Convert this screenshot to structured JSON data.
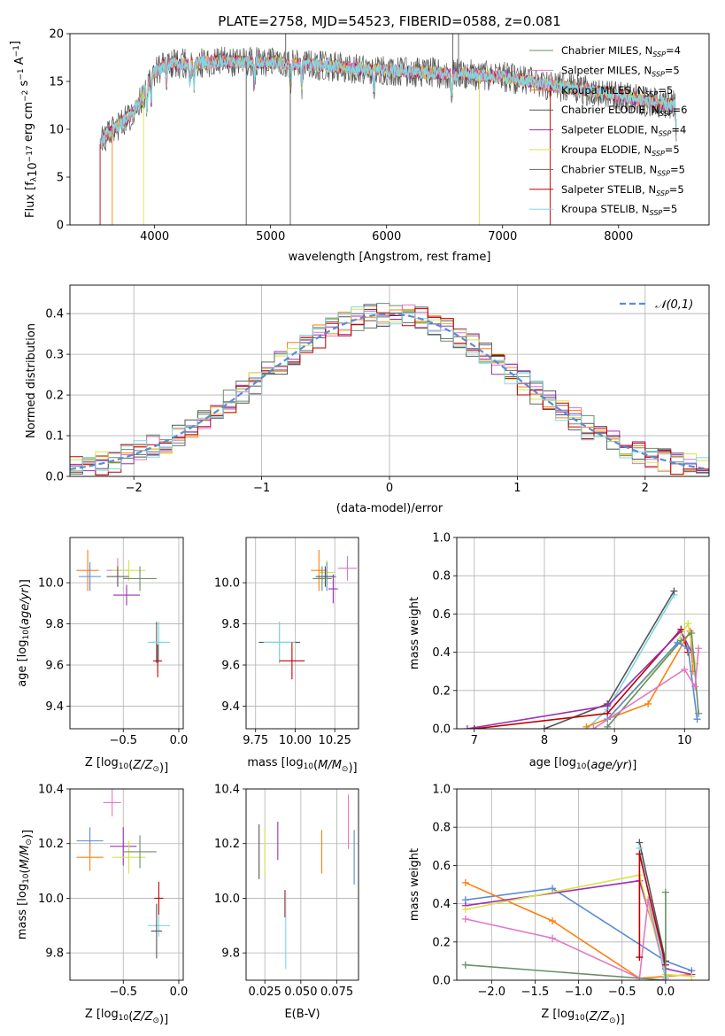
{
  "figure": {
    "title": "PLATE=2758, MJD=54523, FIBERID=0588, z=0.081"
  },
  "chart_data": [
    {
      "id": "spectrum",
      "type": "line",
      "title": "PLATE=2758, MJD=54523, FIBERID=0588, z=0.081",
      "xlabel": "wavelength [Angstrom, rest frame]",
      "ylabel": "Flux [fλ10⁻¹⁷ erg cm⁻² s⁻¹ A⁻¹]",
      "xlim": [
        3270,
        8780
      ],
      "ylim": [
        0,
        20
      ],
      "xticks": [
        4000,
        5000,
        6000,
        7000,
        8000
      ],
      "yticks": [
        0,
        5,
        10,
        15,
        20
      ],
      "grid": false,
      "legend_position": "top-right",
      "continuum": {
        "x": [
          3530,
          3600,
          3700,
          3800,
          3900,
          4000,
          4100,
          4300,
          4600,
          5000,
          5400,
          5800,
          6200,
          6600,
          7000,
          7300,
          7600,
          7900,
          8200,
          8500
        ],
        "y": [
          8.5,
          9.5,
          10.5,
          11.5,
          13.5,
          16.0,
          16.8,
          16.9,
          17.1,
          17.0,
          16.7,
          16.3,
          16.0,
          15.8,
          15.5,
          14.8,
          14.3,
          13.8,
          13.0,
          12.5
        ]
      },
      "series": [
        {
          "name": "Chabrier MILES, N_SSP=4",
          "color": "#6a8f6a"
        },
        {
          "name": "Salpeter MILES, N_SSP=5",
          "color": "#e377c2"
        },
        {
          "name": "Kroupa MILES, N_SSP=5",
          "color": "#ff7f0e"
        },
        {
          "name": "Chabrier ELODIE, N_SSP=6",
          "color": "#555555"
        },
        {
          "name": "Salpeter ELODIE, N_SSP=4",
          "color": "#9b30b6"
        },
        {
          "name": "Kroupa ELODIE, N_SSP=5",
          "color": "#d8e34a"
        },
        {
          "name": "Chabrier STELIB, N_SSP=5",
          "color": "#666666"
        },
        {
          "name": "Salpeter STELIB, N_SSP=5",
          "color": "#c00000"
        },
        {
          "name": "Kroupa STELIB, N_SSP=5",
          "color": "#7fd8e0"
        }
      ],
      "legend": [
        {
          "pre": "Chabrier MILES, N",
          "sub": "SSP",
          "post": "=4",
          "color": "#6a8f6a"
        },
        {
          "pre": "Salpeter MILES, N",
          "sub": "SSP",
          "post": "=5",
          "color": "#e377c2"
        },
        {
          "pre": "Kroupa MILES, N",
          "sub": "SSP",
          "post": "=5",
          "color": "#ff7f0e"
        },
        {
          "pre": "Chabrier ELODIE, N",
          "sub": "SSP",
          "post": "=6",
          "color": "#555555"
        },
        {
          "pre": "Salpeter ELODIE, N",
          "sub": "SSP",
          "post": "=4",
          "color": "#9b30b6"
        },
        {
          "pre": "Kroupa ELODIE, N",
          "sub": "SSP",
          "post": "=5",
          "color": "#d8e34a"
        },
        {
          "pre": "Chabrier STELIB, N",
          "sub": "SSP",
          "post": "=5",
          "color": "#666666"
        },
        {
          "pre": "Salpeter STELIB, N",
          "sub": "SSP",
          "post": "=5",
          "color": "#c00000"
        },
        {
          "pre": "Kroupa STELIB, N",
          "sub": "SSP",
          "post": "=5",
          "color": "#7fd8e0"
        }
      ]
    },
    {
      "id": "residuals",
      "type": "line",
      "xlabel": "(data-model)/error",
      "ylabel": "Normed distribution",
      "xlim": [
        -2.5,
        2.5
      ],
      "ylim": [
        0,
        0.47
      ],
      "xticks": [
        -2,
        -1,
        0,
        1,
        2
      ],
      "yticks": [
        0.0,
        0.1,
        0.2,
        0.3,
        0.4
      ],
      "grid": true,
      "legend_position": "top-right",
      "reference": {
        "name": "𝒩(0,1)",
        "color": "#5b8bd6"
      },
      "bin_width": 0.1,
      "series": [
        {
          "color": "#6a8f6a"
        },
        {
          "color": "#e377c2"
        },
        {
          "color": "#ff7f0e"
        },
        {
          "color": "#555555"
        },
        {
          "color": "#9b30b6"
        },
        {
          "color": "#d8e34a"
        },
        {
          "color": "#666666"
        },
        {
          "color": "#c00000"
        },
        {
          "color": "#7fd8e0"
        }
      ]
    },
    {
      "id": "age-vs-Z",
      "type": "scatter",
      "xlabel": "Z [log₁₀(Z/Z⊙)]",
      "ylabel": "age  [log₁₀(age/yr)]",
      "xlim": [
        -0.98,
        0.04
      ],
      "ylim": [
        9.29,
        10.22
      ],
      "xticks": [
        -0.5,
        0.0
      ],
      "yticks": [
        9.4,
        9.6,
        9.8,
        10.0
      ],
      "grid": true,
      "points": [
        {
          "x": -0.82,
          "y": 10.06,
          "ex": 0.1,
          "ey": 0.1,
          "color": "#ff7f0e"
        },
        {
          "x": -0.55,
          "y": 10.06,
          "ex": 0.1,
          "ey": 0.06,
          "color": "#e377c2"
        },
        {
          "x": -0.45,
          "y": 10.06,
          "ex": 0.15,
          "ey": 0.05,
          "color": "#d8e34a"
        },
        {
          "x": -0.8,
          "y": 10.03,
          "ex": 0.1,
          "ey": 0.07,
          "color": "#5b8bd6"
        },
        {
          "x": -0.55,
          "y": 10.03,
          "ex": 0.1,
          "ey": 0.05,
          "color": "#555555"
        },
        {
          "x": -0.35,
          "y": 10.02,
          "ex": 0.15,
          "ey": 0.06,
          "color": "#6a8f6a"
        },
        {
          "x": -0.47,
          "y": 9.94,
          "ex": 0.12,
          "ey": 0.05,
          "color": "#9b30b6"
        },
        {
          "x": -0.2,
          "y": 9.71,
          "ex": 0.05,
          "ey": 0.1,
          "color": "#555555"
        },
        {
          "x": -0.18,
          "y": 9.71,
          "ex": 0.1,
          "ey": 0.1,
          "color": "#7fd8e0"
        },
        {
          "x": -0.19,
          "y": 9.62,
          "ex": 0.04,
          "ey": 0.08,
          "color": "#c00000"
        }
      ]
    },
    {
      "id": "age-vs-mass",
      "type": "scatter",
      "xlabel": "mass [log₁₀(M/M⊙)]",
      "xlim": [
        9.69,
        10.4
      ],
      "ylim": [
        9.29,
        10.22
      ],
      "xticks": [
        9.75,
        10.0,
        10.25
      ],
      "yticks": [
        9.4,
        9.6,
        9.8,
        10.0
      ],
      "grid": true,
      "points": [
        {
          "x": 10.15,
          "y": 10.06,
          "ex": 0.05,
          "ey": 0.1,
          "color": "#ff7f0e"
        },
        {
          "x": 10.33,
          "y": 10.07,
          "ex": 0.06,
          "ey": 0.06,
          "color": "#e377c2"
        },
        {
          "x": 10.2,
          "y": 10.05,
          "ex": 0.05,
          "ey": 0.06,
          "color": "#d8e34a"
        },
        {
          "x": 10.2,
          "y": 10.03,
          "ex": 0.06,
          "ey": 0.07,
          "color": "#5b8bd6"
        },
        {
          "x": 10.19,
          "y": 10.03,
          "ex": 0.06,
          "ey": 0.05,
          "color": "#555555"
        },
        {
          "x": 10.17,
          "y": 10.02,
          "ex": 0.06,
          "ey": 0.06,
          "color": "#6a8f6a"
        },
        {
          "x": 10.24,
          "y": 9.97,
          "ex": 0.03,
          "ey": 0.07,
          "color": "#9b30b6"
        },
        {
          "x": 9.9,
          "y": 9.71,
          "ex": 0.13,
          "ey": 0.1,
          "color": "#555555"
        },
        {
          "x": 9.9,
          "y": 9.71,
          "ex": 0.1,
          "ey": 0.1,
          "color": "#7fd8e0"
        },
        {
          "x": 9.98,
          "y": 9.62,
          "ex": 0.08,
          "ey": 0.09,
          "color": "#c00000"
        }
      ]
    },
    {
      "id": "mass-weight-vs-age",
      "type": "line",
      "xlabel": "age  [log₁₀(age/yr)]",
      "ylabel": "mass weight",
      "xlim": [
        6.75,
        10.35
      ],
      "ylim": [
        0,
        1.0
      ],
      "xticks": [
        7,
        8,
        9,
        10
      ],
      "yticks": [
        0.0,
        0.2,
        0.4,
        0.6,
        0.8,
        1.0
      ],
      "grid": true,
      "series": [
        {
          "color": "#7fd8e0",
          "x": [
            8.6,
            8.9,
            9.85
          ],
          "y": [
            0.0,
            0.1,
            0.7
          ]
        },
        {
          "color": "#555555",
          "x": [
            8.0,
            8.9,
            9.85
          ],
          "y": [
            0.0,
            0.13,
            0.72
          ]
        },
        {
          "color": "#c00000",
          "x": [
            7.0,
            8.9,
            9.95,
            10.05
          ],
          "y": [
            0.0,
            0.08,
            0.52,
            0.4
          ]
        },
        {
          "color": "#9b30b6",
          "x": [
            6.9,
            8.9,
            9.95,
            10.1
          ],
          "y": [
            0.0,
            0.12,
            0.51,
            0.4
          ]
        },
        {
          "color": "#ff7f0e",
          "x": [
            8.6,
            9.48,
            10.08,
            10.12
          ],
          "y": [
            0.01,
            0.13,
            0.51,
            0.3
          ]
        },
        {
          "color": "#d8e34a",
          "x": [
            8.9,
            9.8,
            10.05,
            10.15
          ],
          "y": [
            0.05,
            0.4,
            0.55,
            0.34
          ]
        },
        {
          "color": "#6a8f6a",
          "x": [
            8.9,
            9.95,
            10.1,
            10.2
          ],
          "y": [
            0.01,
            0.46,
            0.5,
            0.08
          ]
        },
        {
          "color": "#5b8bd6",
          "x": [
            8.9,
            9.9,
            10.05,
            10.18
          ],
          "y": [
            0.05,
            0.45,
            0.42,
            0.05
          ]
        },
        {
          "color": "#e377c2",
          "x": [
            8.7,
            10.0,
            10.15,
            10.2
          ],
          "y": [
            0.0,
            0.31,
            0.22,
            0.42
          ]
        }
      ]
    },
    {
      "id": "mass-vs-Z",
      "type": "scatter",
      "xlabel": "Z [log₁₀(Z/Z⊙)]",
      "ylabel": "mass [log₁₀(M/M⊙)]",
      "xlim": [
        -0.98,
        0.04
      ],
      "ylim": [
        9.7,
        10.4
      ],
      "xticks": [
        -0.5,
        0.0
      ],
      "yticks": [
        9.8,
        10.0,
        10.2,
        10.4
      ],
      "grid": true,
      "points": [
        {
          "x": -0.6,
          "y": 10.35,
          "ex": 0.08,
          "ey": 0.05,
          "color": "#e377c2"
        },
        {
          "x": -0.8,
          "y": 10.21,
          "ex": 0.12,
          "ey": 0.05,
          "color": "#5b8bd6"
        },
        {
          "x": -0.8,
          "y": 10.15,
          "ex": 0.12,
          "ey": 0.05,
          "color": "#ff7f0e"
        },
        {
          "x": -0.5,
          "y": 10.19,
          "ex": 0.12,
          "ey": 0.07,
          "color": "#9b30b6"
        },
        {
          "x": -0.45,
          "y": 10.15,
          "ex": 0.15,
          "ey": 0.06,
          "color": "#d8e34a"
        },
        {
          "x": -0.35,
          "y": 10.17,
          "ex": 0.15,
          "ey": 0.06,
          "color": "#6a8f6a"
        },
        {
          "x": -0.18,
          "y": 10.0,
          "ex": 0.04,
          "ey": 0.06,
          "color": "#c00000"
        },
        {
          "x": -0.18,
          "y": 9.9,
          "ex": 0.1,
          "ey": 0.04,
          "color": "#7fd8e0"
        },
        {
          "x": -0.2,
          "y": 9.88,
          "ex": 0.05,
          "ey": 0.1,
          "color": "#555555"
        }
      ]
    },
    {
      "id": "mass-vs-ebv",
      "type": "scatter",
      "xlabel": "E(B-V)",
      "xlim": [
        0.012,
        0.09
      ],
      "ylim": [
        9.7,
        10.4
      ],
      "xticks": [
        0.025,
        0.05,
        0.075
      ],
      "yticks": [
        9.8,
        10.0,
        10.2,
        10.4
      ],
      "grid": true,
      "points": [
        {
          "x": 0.021,
          "y": 10.17,
          "ex": 0.0,
          "ey": 0.1,
          "color": "#555555"
        },
        {
          "x": 0.025,
          "y": 10.17,
          "ex": 0.0,
          "ey": 0.09,
          "color": "#d8e34a"
        },
        {
          "x": 0.034,
          "y": 10.21,
          "ex": 0.0,
          "ey": 0.07,
          "color": "#9b30b6"
        },
        {
          "x": 0.039,
          "y": 9.98,
          "ex": 0.0,
          "ey": 0.05,
          "color": "#c00000"
        },
        {
          "x": 0.0395,
          "y": 9.88,
          "ex": 0.0,
          "ey": 0.14,
          "color": "#7fd8e0"
        },
        {
          "x": 0.0645,
          "y": 10.17,
          "ex": 0.0,
          "ey": 0.08,
          "color": "#ff7f0e"
        },
        {
          "x": 0.083,
          "y": 10.28,
          "ex": 0.0,
          "ey": 0.1,
          "color": "#e377c2"
        },
        {
          "x": 0.087,
          "y": 10.15,
          "ex": 0.0,
          "ey": 0.1,
          "color": "#5b8bd6"
        }
      ]
    },
    {
      "id": "mass-weight-vs-Z",
      "type": "line",
      "xlabel": "Z [log₁₀(Z/Z⊙)]",
      "ylabel": "mass weight",
      "xlim": [
        -2.4,
        0.5
      ],
      "ylim": [
        0,
        1.0
      ],
      "xticks": [
        -2.0,
        -1.5,
        -1.0,
        -0.5,
        0.0
      ],
      "yticks": [
        0.0,
        0.2,
        0.4,
        0.6,
        0.8,
        1.0
      ],
      "grid": true,
      "series": [
        {
          "color": "#5b8bd6",
          "x": [
            -2.3,
            -1.3,
            0.0,
            0.3
          ],
          "y": [
            0.42,
            0.48,
            0.1,
            0.05
          ]
        },
        {
          "color": "#ff7f0e",
          "x": [
            -2.3,
            -1.3,
            -0.3,
            0.3
          ],
          "y": [
            0.51,
            0.31,
            0.01,
            0.03
          ]
        },
        {
          "color": "#9b30b6",
          "x": [
            -2.3,
            -0.3,
            0.0,
            0.3
          ],
          "y": [
            0.39,
            0.52,
            0.06,
            0.03
          ]
        },
        {
          "color": "#d8e34a",
          "x": [
            -2.3,
            -0.3,
            0.0,
            0.3
          ],
          "y": [
            0.37,
            0.55,
            0.03,
            0.02
          ]
        },
        {
          "color": "#e377c2",
          "x": [
            -2.3,
            -1.3,
            -0.3,
            -0.2,
            0.0
          ],
          "y": [
            0.32,
            0.22,
            0.01,
            0.42,
            0.01
          ]
        },
        {
          "color": "#555555",
          "x": [
            -0.3,
            0.0
          ],
          "y": [
            0.72,
            0.1
          ]
        },
        {
          "color": "#7fd8e0",
          "x": [
            -0.3,
            0.0
          ],
          "y": [
            0.69,
            0.02
          ]
        },
        {
          "color": "#c00000",
          "x": [
            -0.3,
            -0.3,
            0.0
          ],
          "y": [
            0.12,
            0.66,
            0.08
          ]
        },
        {
          "color": "#6a8f6a",
          "x": [
            -2.3,
            0.0,
            0.0
          ],
          "y": [
            0.08,
            0.0,
            0.46
          ]
        }
      ]
    }
  ]
}
